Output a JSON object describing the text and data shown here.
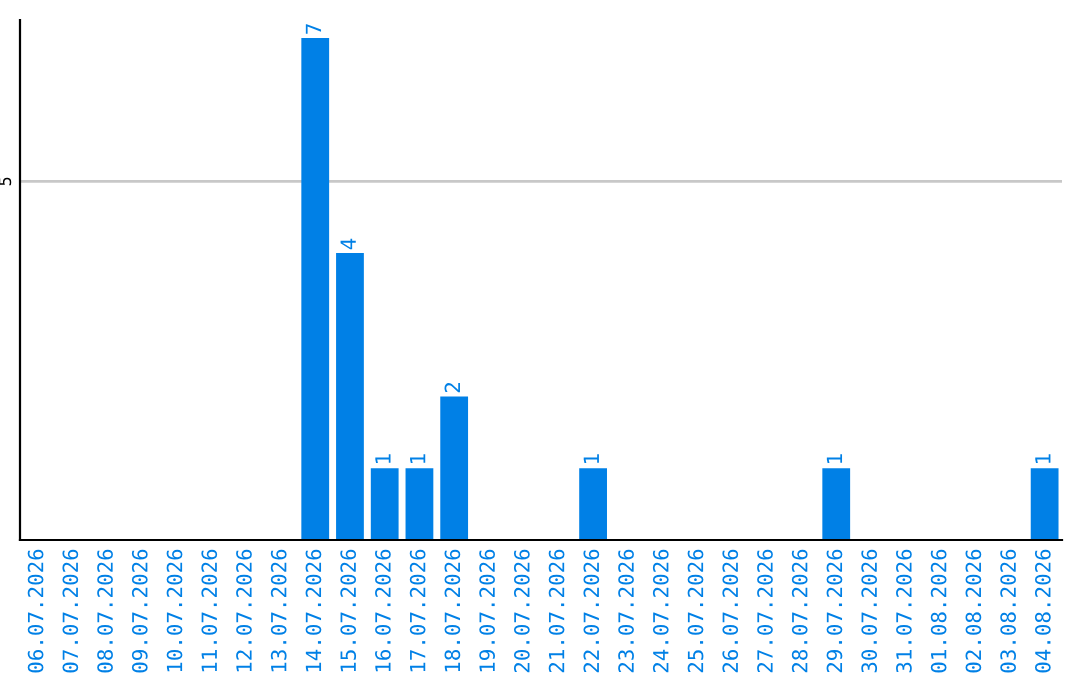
{
  "chart_data": {
    "type": "bar",
    "categories": [
      "06.07.2026",
      "07.07.2026",
      "08.07.2026",
      "09.07.2026",
      "10.07.2026",
      "11.07.2026",
      "12.07.2026",
      "13.07.2026",
      "14.07.2026",
      "15.07.2026",
      "16.07.2026",
      "17.07.2026",
      "18.07.2026",
      "19.07.2026",
      "20.07.2026",
      "21.07.2026",
      "22.07.2026",
      "23.07.2026",
      "24.07.2026",
      "25.07.2026",
      "26.07.2026",
      "27.07.2026",
      "28.07.2026",
      "29.07.2026",
      "30.07.2026",
      "31.07.2026",
      "01.08.2026",
      "02.08.2026",
      "03.08.2026",
      "04.08.2026"
    ],
    "values": [
      0,
      0,
      0,
      0,
      0,
      0,
      0,
      0,
      7,
      4,
      1,
      1,
      2,
      0,
      0,
      0,
      1,
      0,
      0,
      0,
      0,
      0,
      0,
      1,
      0,
      0,
      0,
      0,
      0,
      1
    ],
    "value_labels": [
      null,
      null,
      null,
      null,
      null,
      null,
      null,
      null,
      "7",
      "4",
      "1",
      "1",
      "2",
      null,
      null,
      null,
      "1",
      null,
      null,
      null,
      null,
      null,
      null,
      "1",
      null,
      null,
      null,
      null,
      null,
      "1"
    ],
    "color": "#0080e6",
    "ylim": [
      0,
      7.25
    ],
    "yticks": [
      5
    ],
    "grid": "y"
  }
}
